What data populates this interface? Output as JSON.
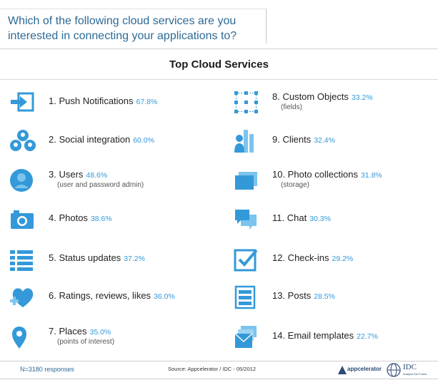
{
  "question": "Which of the following cloud services are you interested in connecting your applications to?",
  "chart_data": {
    "type": "table",
    "title": "Top Cloud Services",
    "items": [
      {
        "label": "1. Push Notifications",
        "value": "67.8%",
        "icon": "push-notification-icon"
      },
      {
        "label": "2. Social integration",
        "value": "60.0%",
        "icon": "social-integration-icon"
      },
      {
        "label": "3. Users",
        "value": "48.6%",
        "sub": "(user and password admin)",
        "icon": "user-icon"
      },
      {
        "label": "4. Photos",
        "value": "38.6%",
        "icon": "camera-icon"
      },
      {
        "label": "5. Status updates",
        "value": "37.2%",
        "icon": "status-list-icon"
      },
      {
        "label": "6. Ratings, reviews, likes",
        "value": "36.0%",
        "icon": "heart-plus-icon"
      },
      {
        "label": "7. Places",
        "value": "35.0%",
        "sub": "(points of interest)",
        "icon": "map-pin-icon"
      },
      {
        "label": "8. Custom Objects",
        "value": "33.2%",
        "sub": "(fields)",
        "icon": "custom-object-icon"
      },
      {
        "label": "9. Clients",
        "value": "32.4%",
        "icon": "clients-icon"
      },
      {
        "label": "10. Photo collections",
        "value": "31.8%",
        "sub": "(storage)",
        "icon": "photo-collection-icon"
      },
      {
        "label": "11. Chat",
        "value": "30.3%",
        "icon": "chat-icon"
      },
      {
        "label": "12. Check-ins",
        "value": "29.2%",
        "icon": "checkbox-icon"
      },
      {
        "label": "13. Posts",
        "value": "28.5%",
        "icon": "posts-icon"
      },
      {
        "label": "14. Email templates",
        "value": "22.7%",
        "icon": "email-template-icon"
      }
    ]
  },
  "footer": {
    "responses": "N=3180 responses",
    "source": "Source: Appcelerator / IDC - 05/2012",
    "logo_appcelerator": "appcelerator",
    "logo_idc": "IDC",
    "logo_idc_tagline": "Analyze the Future"
  },
  "colors": {
    "accent": "#3399d9",
    "question": "#2d6a96"
  }
}
